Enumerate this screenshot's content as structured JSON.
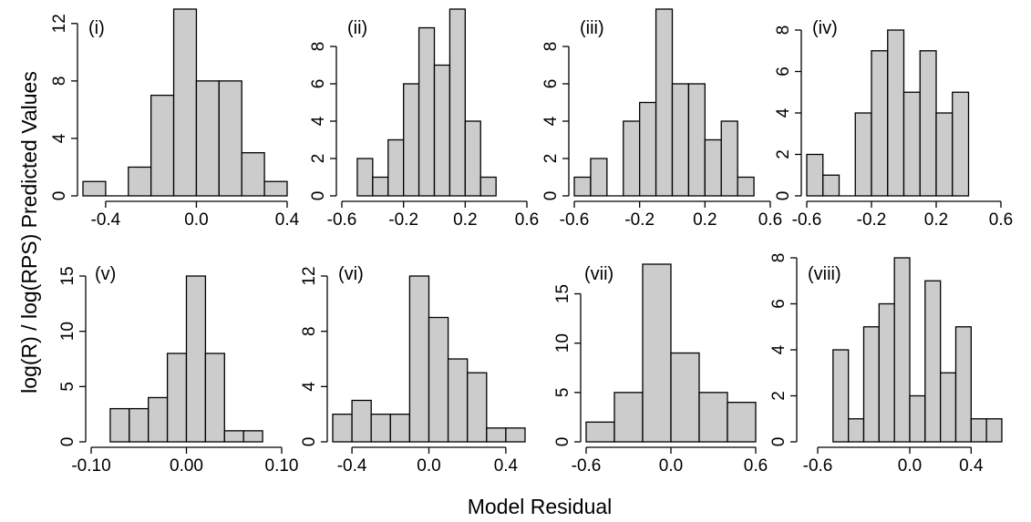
{
  "figure": {
    "ylabel": "log(R) / log(RPS) Predicted Values",
    "xlabel": "Model Residual"
  },
  "chart_data": [
    {
      "type": "bar",
      "panel_label": "(i)",
      "bin_edges": [
        -0.5,
        -0.4,
        -0.3,
        -0.2,
        -0.1,
        0.0,
        0.1,
        0.2,
        0.3,
        0.4
      ],
      "counts": [
        1,
        0,
        2,
        7,
        13,
        8,
        8,
        3,
        1
      ],
      "xticks": [
        "-0.4",
        "0.0",
        "0.4"
      ],
      "xtick_values": [
        -0.4,
        0.0,
        0.4
      ],
      "yticks": [
        "0",
        "4",
        "8",
        "12"
      ],
      "ytick_values": [
        0,
        4,
        8,
        12
      ],
      "xlim": [
        -0.5,
        0.4
      ],
      "ylim": [
        0,
        13
      ]
    },
    {
      "type": "bar",
      "panel_label": "(ii)",
      "bin_edges": [
        -0.5,
        -0.4,
        -0.3,
        -0.2,
        -0.1,
        0.0,
        0.1,
        0.2,
        0.3,
        0.4
      ],
      "counts": [
        2,
        1,
        3,
        6,
        9,
        7,
        10,
        4,
        1
      ],
      "xticks": [
        "-0.6",
        "-0.2",
        "0.2",
        "0.6"
      ],
      "xtick_values": [
        -0.6,
        -0.2,
        0.2,
        0.6
      ],
      "yticks": [
        "0",
        "2",
        "4",
        "6",
        "8"
      ],
      "ytick_values": [
        0,
        2,
        4,
        6,
        8
      ],
      "xlim": [
        -0.6,
        0.6
      ],
      "ylim": [
        0,
        10
      ]
    },
    {
      "type": "bar",
      "panel_label": "(iii)",
      "bin_edges": [
        -0.6,
        -0.5,
        -0.4,
        -0.3,
        -0.2,
        -0.1,
        0.0,
        0.1,
        0.2,
        0.3,
        0.4,
        0.5
      ],
      "counts": [
        1,
        2,
        0,
        4,
        5,
        10,
        6,
        6,
        3,
        4,
        1
      ],
      "xticks": [
        "-0.6",
        "-0.2",
        "0.2",
        "0.6"
      ],
      "xtick_values": [
        -0.6,
        -0.2,
        0.2,
        0.6
      ],
      "yticks": [
        "0",
        "2",
        "4",
        "6",
        "8"
      ],
      "ytick_values": [
        0,
        2,
        4,
        6,
        8
      ],
      "xlim": [
        -0.6,
        0.6
      ],
      "ylim": [
        0,
        10
      ]
    },
    {
      "type": "bar",
      "panel_label": "(iv)",
      "bin_edges": [
        -0.6,
        -0.5,
        -0.4,
        -0.3,
        -0.2,
        -0.1,
        0.0,
        0.1,
        0.2,
        0.3,
        0.4
      ],
      "counts": [
        2,
        1,
        0,
        4,
        7,
        8,
        5,
        7,
        4,
        5
      ],
      "xticks": [
        "-0.6",
        "-0.2",
        "0.2",
        "0.6"
      ],
      "xtick_values": [
        -0.6,
        -0.2,
        0.2,
        0.6
      ],
      "yticks": [
        "0",
        "2",
        "4",
        "6",
        "8"
      ],
      "ytick_values": [
        0,
        2,
        4,
        6,
        8
      ],
      "xlim": [
        -0.6,
        0.6
      ],
      "ylim": [
        0,
        8
      ]
    },
    {
      "type": "bar",
      "panel_label": "(v)",
      "bin_edges": [
        -0.08,
        -0.06,
        -0.04,
        -0.02,
        0.0,
        0.02,
        0.04,
        0.06,
        0.08
      ],
      "counts": [
        3,
        3,
        4,
        8,
        15,
        8,
        1,
        1
      ],
      "xticks": [
        "-0.10",
        "0.00",
        "0.10"
      ],
      "xtick_values": [
        -0.1,
        0.0,
        0.1
      ],
      "yticks": [
        "0",
        "5",
        "10",
        "15"
      ],
      "ytick_values": [
        0,
        5,
        10,
        15
      ],
      "xlim": [
        -0.1,
        0.1
      ],
      "ylim": [
        0,
        15
      ]
    },
    {
      "type": "bar",
      "panel_label": "(vi)",
      "bin_edges": [
        -0.5,
        -0.4,
        -0.3,
        -0.2,
        -0.1,
        0.0,
        0.1,
        0.2,
        0.3,
        0.4,
        0.5
      ],
      "counts": [
        2,
        3,
        2,
        2,
        12,
        9,
        6,
        5,
        1,
        1
      ],
      "xticks": [
        "-0.4",
        "0.0",
        "0.4"
      ],
      "xtick_values": [
        -0.4,
        0.0,
        0.4
      ],
      "yticks": [
        "0",
        "4",
        "8",
        "12"
      ],
      "ytick_values": [
        0,
        4,
        8,
        12
      ],
      "xlim": [
        -0.5,
        0.5
      ],
      "ylim": [
        0,
        12
      ]
    },
    {
      "type": "bar",
      "panel_label": "(vii)",
      "bin_edges": [
        -0.6,
        -0.4,
        -0.2,
        0.0,
        0.2,
        0.4,
        0.6
      ],
      "counts": [
        2,
        5,
        18,
        9,
        5,
        4
      ],
      "xticks": [
        "-0.6",
        "0.0",
        "0.6"
      ],
      "xtick_values": [
        -0.6,
        0.0,
        0.6
      ],
      "yticks": [
        "0",
        "5",
        "10",
        "15"
      ],
      "ytick_values": [
        0,
        5,
        10,
        15
      ],
      "xlim": [
        -0.6,
        0.6
      ],
      "ylim": [
        0,
        18
      ]
    },
    {
      "type": "bar",
      "panel_label": "(viii)",
      "bin_edges": [
        -0.5,
        -0.4,
        -0.3,
        -0.2,
        -0.1,
        0.0,
        0.1,
        0.2,
        0.3,
        0.4,
        0.5,
        0.6
      ],
      "counts": [
        4,
        1,
        5,
        6,
        8,
        2,
        7,
        3,
        5,
        1,
        1
      ],
      "xticks": [
        "-0.6",
        "0.0",
        "0.4"
      ],
      "xtick_values": [
        -0.6,
        0.0,
        0.4
      ],
      "yticks": [
        "0",
        "2",
        "4",
        "6",
        "8"
      ],
      "ytick_values": [
        0,
        2,
        4,
        6,
        8
      ],
      "xlim": [
        -0.6,
        0.6
      ],
      "ylim": [
        0,
        8
      ]
    }
  ]
}
